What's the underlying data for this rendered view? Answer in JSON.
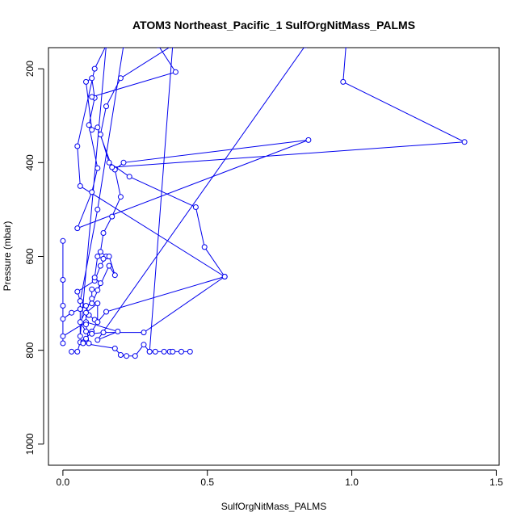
{
  "chart_data": {
    "type": "line",
    "title": "ATOM3 Northeast_Pacific_1 SulfOrgNitMass_PALMS",
    "xlabel": "SulfOrgNitMass_PALMS",
    "ylabel": "Pressure (mbar)",
    "xlim": [
      -0.05,
      1.51
    ],
    "ylim": [
      1045,
      155
    ],
    "y_reversed": true,
    "grid": false,
    "legend": "none",
    "x_ticks": [
      0.0,
      0.5,
      1.0,
      1.5
    ],
    "x_tick_labels": [
      "0.0",
      "0.5",
      "1.0",
      "1.5"
    ],
    "y_ticks": [
      200,
      400,
      600,
      800,
      1000
    ],
    "y_tick_labels": [
      "200",
      "400",
      "600",
      "800",
      "1000"
    ],
    "series_color": "#0000ee",
    "points": [
      [
        0.03,
        803
      ],
      [
        0.05,
        803
      ],
      [
        0.06,
        783
      ],
      [
        0.07,
        783
      ],
      [
        0.08,
        775
      ],
      [
        0.1,
        760
      ],
      [
        0.12,
        740
      ],
      [
        0.11,
        735
      ],
      [
        0.09,
        725
      ],
      [
        0.08,
        705
      ],
      [
        0.06,
        695
      ],
      [
        0.05,
        675
      ],
      [
        0.11,
        652
      ],
      [
        0.13,
        620
      ],
      [
        0.15,
        600
      ],
      [
        0.13,
        590
      ],
      [
        0.14,
        550
      ],
      [
        0.17,
        515
      ],
      [
        0.2,
        473
      ],
      [
        0.18,
        415
      ],
      [
        0.21,
        400
      ],
      [
        0.85,
        352
      ],
      [
        0.05,
        540
      ],
      [
        0.1,
        463
      ],
      [
        0.12,
        412
      ],
      [
        0.09,
        320
      ],
      [
        0.11,
        262
      ],
      [
        0.1,
        220
      ],
      [
        0.08,
        228
      ],
      [
        0.1,
        330
      ],
      [
        0.12,
        325
      ],
      [
        0.17,
        410
      ],
      [
        1.39,
        356
      ],
      [
        0.97,
        228
      ],
      [
        0.98,
        150
      ],
      [
        0.84,
        150
      ],
      [
        0.12,
        778
      ],
      [
        0.19,
        760
      ],
      [
        0.08,
        740
      ],
      [
        0.0,
        770
      ],
      [
        0.0,
        705
      ],
      [
        0.0,
        650
      ],
      [
        0.0,
        567
      ],
      [
        0.0,
        785
      ],
      [
        0.0,
        733
      ],
      [
        0.03,
        720
      ],
      [
        0.06,
        712
      ],
      [
        0.1,
        700
      ],
      [
        0.16,
        620
      ],
      [
        0.18,
        640
      ],
      [
        0.16,
        600
      ],
      [
        0.14,
        605
      ],
      [
        0.12,
        600
      ],
      [
        0.11,
        645
      ],
      [
        0.13,
        657
      ],
      [
        0.12,
        672
      ],
      [
        0.1,
        670
      ],
      [
        0.1,
        690
      ],
      [
        0.06,
        740
      ],
      [
        0.08,
        760
      ],
      [
        0.1,
        765
      ],
      [
        0.14,
        762
      ],
      [
        0.28,
        762
      ],
      [
        0.56,
        643
      ],
      [
        0.15,
        718
      ],
      [
        0.12,
        740
      ],
      [
        0.12,
        700
      ],
      [
        0.08,
        720
      ],
      [
        0.08,
        745
      ],
      [
        0.09,
        785
      ],
      [
        0.07,
        785
      ],
      [
        0.18,
        796
      ],
      [
        0.2,
        810
      ],
      [
        0.22,
        812
      ],
      [
        0.25,
        812
      ],
      [
        0.28,
        788
      ],
      [
        0.3,
        803
      ],
      [
        0.32,
        803
      ],
      [
        0.35,
        803
      ],
      [
        0.37,
        803
      ],
      [
        0.38,
        803
      ],
      [
        0.41,
        803
      ],
      [
        0.44,
        803
      ],
      [
        0.3,
        803
      ],
      [
        0.38,
        150
      ],
      [
        0.2,
        220
      ],
      [
        0.15,
        280
      ],
      [
        0.13,
        340
      ],
      [
        0.16,
        400
      ],
      [
        0.23,
        430
      ],
      [
        0.46,
        495
      ],
      [
        0.49,
        580
      ],
      [
        0.56,
        643
      ],
      [
        0.06,
        450
      ],
      [
        0.05,
        365
      ],
      [
        0.11,
        200
      ],
      [
        0.15,
        150
      ],
      [
        0.06,
        770
      ],
      [
        0.06,
        695
      ],
      [
        0.12,
        500
      ],
      [
        0.21,
        150
      ],
      [
        0.33,
        150
      ],
      [
        0.39,
        207
      ],
      [
        0.1,
        260
      ]
    ]
  }
}
